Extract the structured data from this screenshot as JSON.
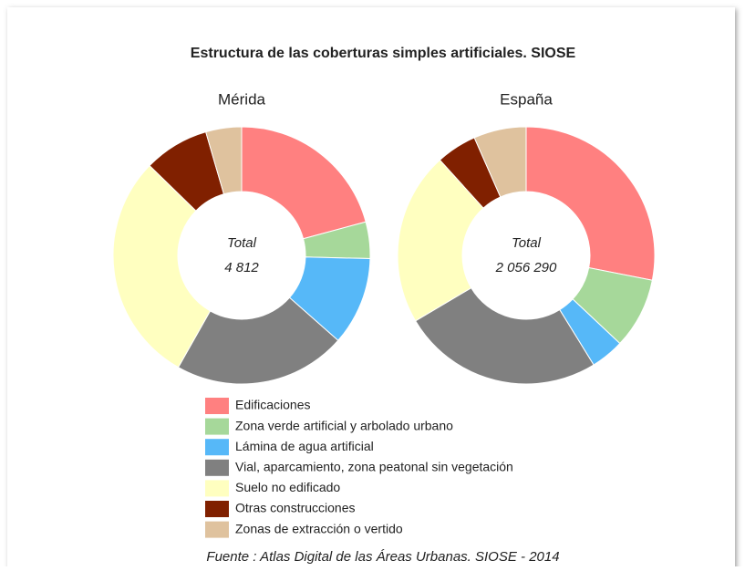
{
  "title": "Estructura de las coberturas simples artificiales. SIOSE",
  "source": "Fuente : Atlas Digital de las Áreas Urbanas. SIOSE - 2014",
  "categories": [
    "Edificaciones",
    "Zona verde artificial y arbolado urbano",
    "Lámina de agua artificial",
    "Vial, aparcamiento, zona peatonal sin vegetación",
    "Suelo no edificado",
    "Otras construcciones",
    "Zonas de extracción o vertido"
  ],
  "colors": [
    "#ff8080",
    "#a6d89a",
    "#56b8f8",
    "#808080",
    "#ffffc0",
    "#802000",
    "#dfc29e"
  ],
  "chart_data": [
    {
      "type": "pie",
      "title": "Mérida",
      "center_label": "Total",
      "total": {
        "value": 4812,
        "label": "4 812"
      },
      "values": [
        20.8,
        4.6,
        11.1,
        21.7,
        29.1,
        8.2,
        4.5
      ]
    },
    {
      "type": "pie",
      "title": "España",
      "center_label": "Total",
      "total": {
        "value": 2056290,
        "label": "2 056 290"
      },
      "values": [
        28.1,
        8.9,
        4.2,
        25.3,
        21.8,
        5.1,
        6.6
      ]
    }
  ]
}
